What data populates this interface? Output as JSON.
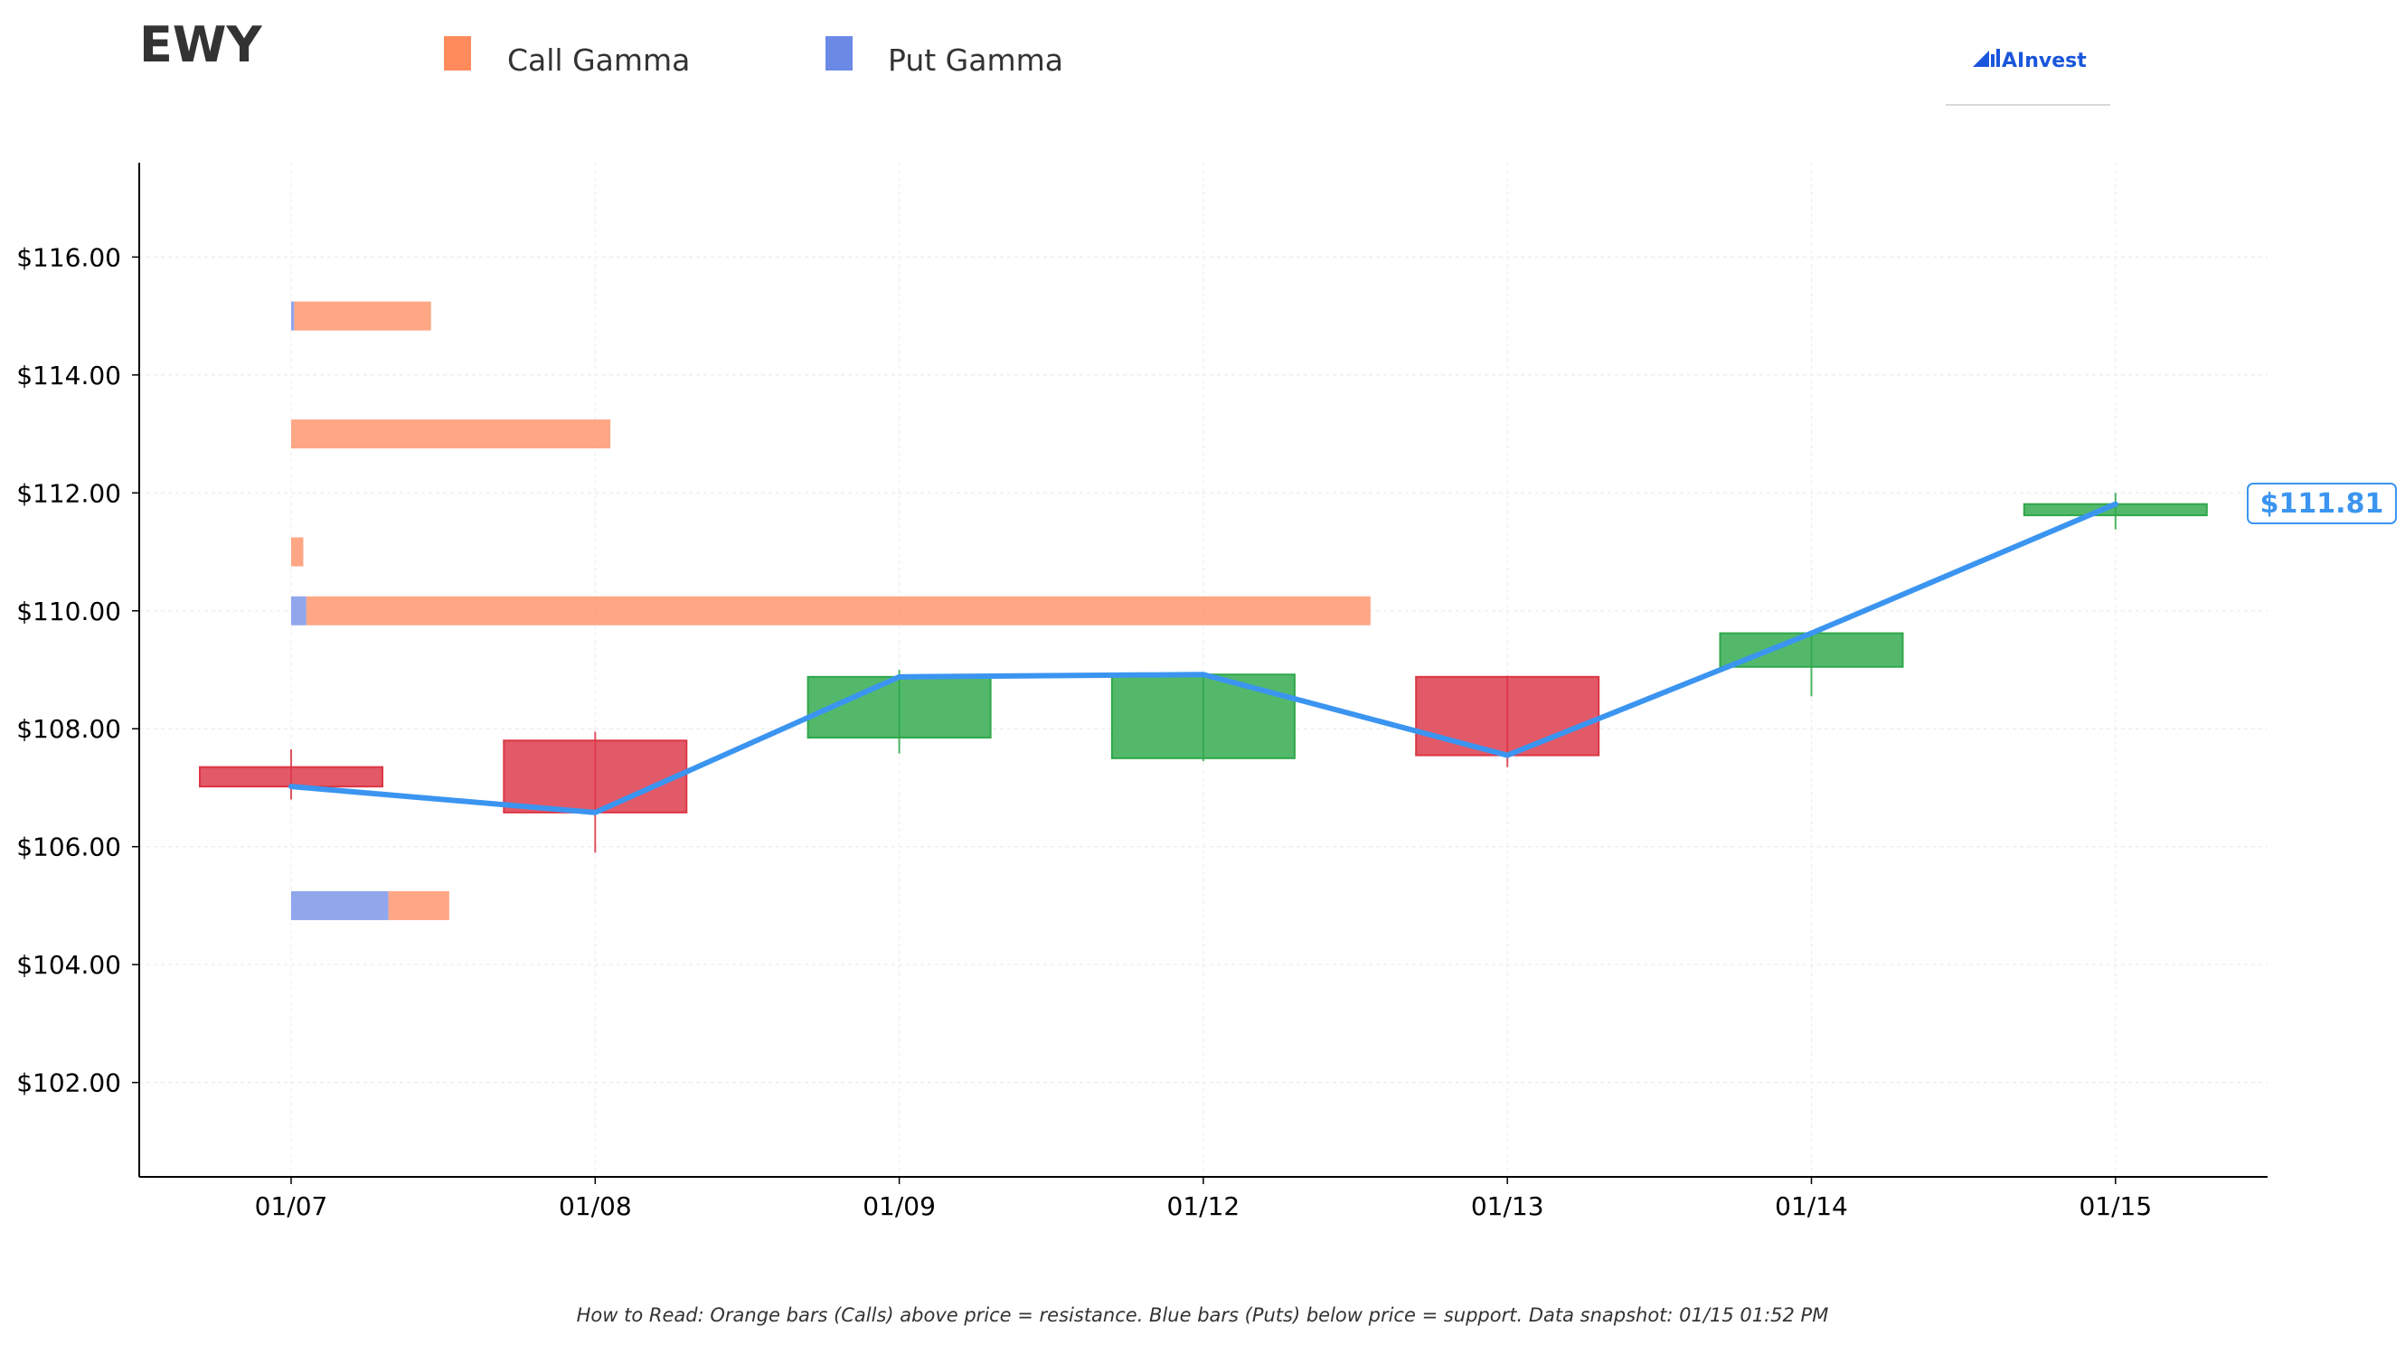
{
  "chart_data": {
    "type": "candlestick",
    "title": "EWY",
    "legend": {
      "placement": "top",
      "items": [
        {
          "label": "Call Gamma",
          "color": "#ff8a5c"
        },
        {
          "label": "Put Gamma",
          "color": "#6b8ae6"
        }
      ]
    },
    "logo_text": "AInvest",
    "categories": [
      "01/07",
      "01/08",
      "01/09",
      "01/12",
      "01/13",
      "01/14",
      "01/15"
    ],
    "ohlc": [
      {
        "date": "01/07",
        "open": 107.35,
        "high": 107.65,
        "low": 106.8,
        "close": 107.02
      },
      {
        "date": "01/08",
        "open": 107.8,
        "high": 107.95,
        "low": 105.9,
        "close": 106.58
      },
      {
        "date": "01/09",
        "open": 107.85,
        "high": 109.0,
        "low": 107.58,
        "close": 108.88
      },
      {
        "date": "01/12",
        "open": 107.5,
        "high": 108.9,
        "low": 107.45,
        "close": 108.92
      },
      {
        "date": "01/13",
        "open": 108.88,
        "high": 108.9,
        "low": 107.35,
        "close": 107.55
      },
      {
        "date": "01/14",
        "open": 109.05,
        "high": 109.65,
        "low": 108.55,
        "close": 109.62
      },
      {
        "date": "01/15",
        "open": 111.62,
        "high": 112.0,
        "low": 111.38,
        "close": 111.81
      }
    ],
    "close_line": {
      "color": "#3b95f0",
      "values": [
        107.02,
        106.58,
        108.88,
        108.92,
        107.55,
        109.62,
        111.81
      ]
    },
    "gamma_levels": [
      {
        "strike": 115.0,
        "call": 0.45,
        "put": 0.01
      },
      {
        "strike": 113.0,
        "call": 1.05,
        "put": 0
      },
      {
        "strike": 111.0,
        "call": 0.04,
        "put": 0
      },
      {
        "strike": 110.0,
        "call": 3.5,
        "put": 0.05
      },
      {
        "strike": 105.0,
        "call": 0.2,
        "put": 0.32
      }
    ],
    "gamma_unit_note": "bar lengths in category-width units starting at 01/07",
    "yaxis": {
      "ylim": [
        100.4,
        117.6
      ],
      "ticks": [
        102,
        104,
        106,
        108,
        110,
        112,
        114,
        116
      ],
      "tick_labels": [
        "$102.00",
        "$104.00",
        "$106.00",
        "$108.00",
        "$110.00",
        "$112.00",
        "$114.00",
        "$116.00"
      ],
      "grid": true
    },
    "last_price_label": "$111.81",
    "colors": {
      "up": "#2ea84a",
      "down": "#dc3545",
      "call": "#ff8a5c",
      "put": "#6b8ae6",
      "price_line": "#3b95f0"
    },
    "footnote": "How to Read: Orange bars (Calls) above price = resistance. Blue bars (Puts) below price = support. Data snapshot: 01/15 01:52 PM"
  }
}
